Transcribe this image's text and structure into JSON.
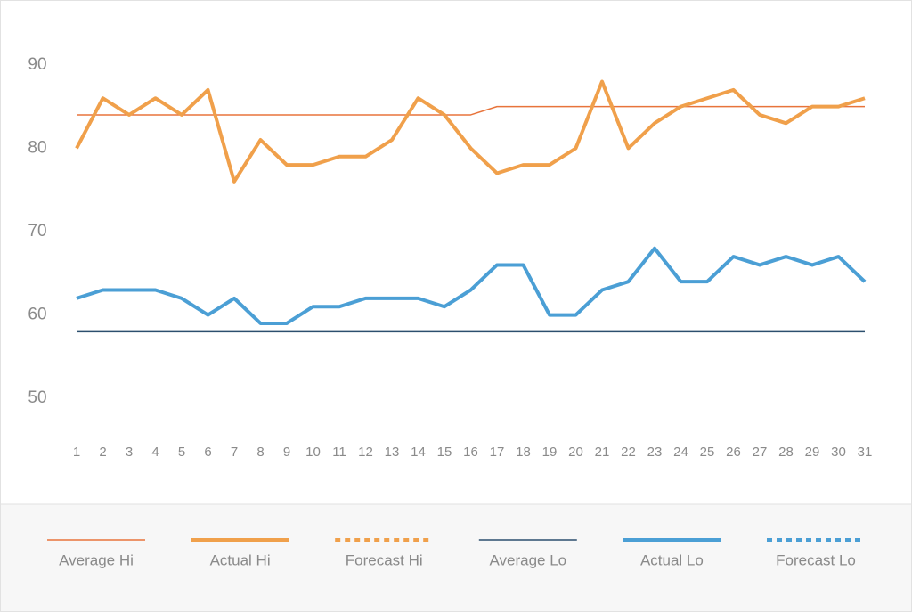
{
  "chart_data": {
    "type": "line",
    "categories": [
      "1",
      "2",
      "3",
      "4",
      "5",
      "6",
      "7",
      "8",
      "9",
      "10",
      "11",
      "12",
      "13",
      "14",
      "15",
      "16",
      "17",
      "18",
      "19",
      "20",
      "21",
      "22",
      "23",
      "24",
      "25",
      "26",
      "27",
      "28",
      "29",
      "30",
      "31"
    ],
    "ylim": [
      45,
      95
    ],
    "yticks": [
      50,
      60,
      70,
      80,
      90
    ],
    "series": [
      {
        "name": "Average Hi",
        "color": "#e8743b",
        "width": 1.5,
        "dashed": false,
        "values": [
          84,
          84,
          84,
          84,
          84,
          84,
          84,
          84,
          84,
          84,
          84,
          84,
          84,
          84,
          84,
          84,
          85,
          85,
          85,
          85,
          85,
          85,
          85,
          85,
          85,
          85,
          85,
          85,
          85,
          85,
          85
        ]
      },
      {
        "name": "Actual Hi",
        "color": "#f0a04b",
        "width": 4,
        "dashed": false,
        "values": [
          80,
          86,
          84,
          86,
          84,
          87,
          76,
          81,
          78,
          78,
          79,
          79,
          81,
          86,
          84,
          80,
          77,
          78,
          78,
          80,
          88,
          80,
          83,
          85,
          86,
          87,
          84,
          83,
          85,
          85,
          86
        ]
      },
      {
        "name": "Forecast Hi",
        "color": "#f0a04b",
        "width": 4,
        "dashed": true,
        "values": [
          null,
          null,
          null,
          null,
          null,
          null,
          null,
          null,
          null,
          null,
          null,
          null,
          null,
          null,
          null,
          null,
          null,
          null,
          null,
          null,
          null,
          null,
          null,
          null,
          null,
          null,
          null,
          null,
          null,
          null,
          null
        ]
      },
      {
        "name": "Average Lo",
        "color": "#2c4f6e",
        "width": 1.5,
        "dashed": false,
        "values": [
          58,
          58,
          58,
          58,
          58,
          58,
          58,
          58,
          58,
          58,
          58,
          58,
          58,
          58,
          58,
          58,
          58,
          58,
          58,
          58,
          58,
          58,
          58,
          58,
          58,
          58,
          58,
          58,
          58,
          58,
          58
        ]
      },
      {
        "name": "Actual Lo",
        "color": "#4b9fd5",
        "width": 4,
        "dashed": false,
        "values": [
          62,
          63,
          63,
          63,
          62,
          60,
          62,
          59,
          59,
          61,
          61,
          62,
          62,
          62,
          61,
          63,
          66,
          66,
          60,
          60,
          63,
          64,
          68,
          64,
          64,
          67,
          66,
          67,
          66,
          67,
          64
        ]
      },
      {
        "name": "Forecast Lo",
        "color": "#4b9fd5",
        "width": 4,
        "dashed": true,
        "values": [
          null,
          null,
          null,
          null,
          null,
          null,
          null,
          null,
          null,
          null,
          null,
          null,
          null,
          null,
          null,
          null,
          null,
          null,
          null,
          null,
          null,
          null,
          null,
          null,
          null,
          null,
          null,
          null,
          null,
          null,
          null
        ]
      }
    ]
  }
}
